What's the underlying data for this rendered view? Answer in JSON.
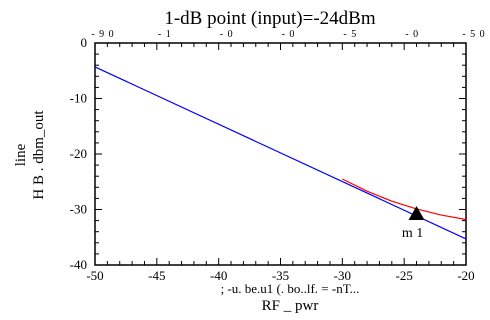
{
  "title": "1-dB point (input)=-24dBm",
  "chart_data": {
    "type": "line",
    "title": "1-dB point (input)=-24dBm",
    "xlabel": "RF _ pwr",
    "ylabel_lines": [
      "line",
      "H B . dbm_out"
    ],
    "xlim": [
      -50,
      -20
    ],
    "ylim": [
      -40,
      0
    ],
    "x_ticks": [
      -50,
      -45,
      -40,
      -35,
      -30,
      -25,
      -20
    ],
    "y_ticks": [
      0,
      -10,
      -20,
      -30,
      -40
    ],
    "top_tick_labels": [
      "- 9 0",
      "- 1",
      "- 0",
      "- 0",
      "- 5",
      "- 0",
      "- 5 0"
    ],
    "series": [
      {
        "color": "#0000ff",
        "x": [
          -50,
          -20
        ],
        "y": [
          -4.3,
          -35.3
        ]
      },
      {
        "color": "#ff0000",
        "x": [
          -30,
          -28,
          -26,
          -24,
          -22,
          -20
        ],
        "y": [
          -24.5,
          -26.7,
          -28.5,
          -29.9,
          -31.0,
          -31.8
        ]
      }
    ],
    "marker": {
      "x": -24,
      "y": -31.0,
      "label": "m 1"
    },
    "footer_text": "; -u. be.u1 (. bo..lf. = -nT..."
  }
}
